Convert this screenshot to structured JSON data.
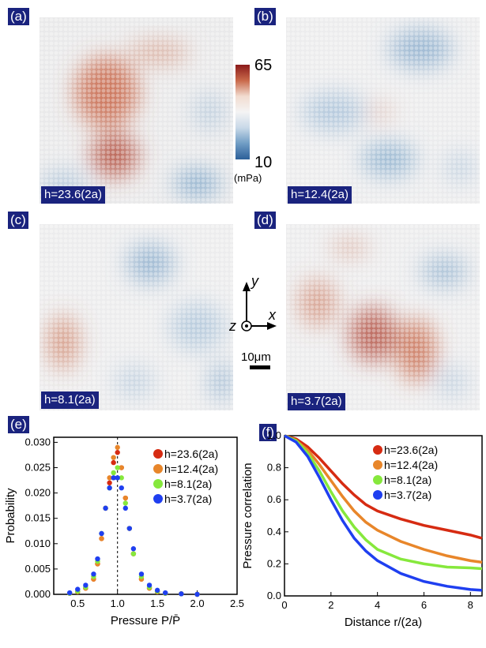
{
  "panels": [
    {
      "label": "(a)",
      "h_label": "h=23.6(2a)"
    },
    {
      "label": "(b)",
      "h_label": "h=12.4(2a)"
    },
    {
      "label": "(c)",
      "h_label": "h=8.1(2a)"
    },
    {
      "label": "(d)",
      "h_label": "h=3.7(2a)"
    }
  ],
  "colorbar": {
    "max": "65",
    "min": "10",
    "unit": "(mPa)",
    "colors": [
      "#8b1a1a",
      "#c9694a",
      "#f2dcd0",
      "#f4f4f4",
      "#c8d8e8",
      "#6f9cc4",
      "#2c5f99"
    ]
  },
  "axes_glyph": {
    "y": "y",
    "x": "x",
    "z": "z"
  },
  "scalebar": {
    "label": "10μm"
  },
  "panel_e": {
    "label": "(e)"
  },
  "panel_f": {
    "label": "(f)"
  },
  "series_colors": [
    "#d62b12",
    "#e8862a",
    "#86e83c",
    "#1f3ff0"
  ],
  "chart_data": [
    {
      "type": "scatter",
      "xlabel": "Pressure P/P̄",
      "ylabel": "Probability",
      "xlim": [
        0.2,
        2.5
      ],
      "ylim": [
        0,
        0.031
      ],
      "xticks": [
        "0.5",
        "1.0",
        "1.5",
        "2.0",
        "2.5"
      ],
      "yticks": [
        "0.000",
        "0.005",
        "0.010",
        "0.015",
        "0.020",
        "0.025",
        "0.030"
      ],
      "vline": 1.0,
      "legend": "top-right",
      "series": [
        {
          "name": "h=23.6(2a)",
          "x": [
            0.4,
            0.5,
            0.6,
            0.7,
            0.75,
            0.8,
            0.85,
            0.9,
            0.95,
            1.0,
            1.05,
            1.1,
            1.15,
            1.2,
            1.3,
            1.4,
            1.5,
            1.6,
            1.8,
            2.0
          ],
          "y": [
            0.0002,
            0.0005,
            0.0012,
            0.003,
            0.006,
            0.011,
            0.017,
            0.022,
            0.026,
            0.028,
            0.025,
            0.019,
            0.013,
            0.008,
            0.003,
            0.0012,
            0.0005,
            0.0002,
            0.0001,
            0.0
          ]
        },
        {
          "name": "h=12.4(2a)",
          "x": [
            0.4,
            0.5,
            0.6,
            0.7,
            0.75,
            0.8,
            0.85,
            0.9,
            0.95,
            1.0,
            1.05,
            1.1,
            1.15,
            1.2,
            1.3,
            1.4,
            1.5,
            1.6,
            1.8,
            2.0
          ],
          "y": [
            0.0002,
            0.0005,
            0.0012,
            0.003,
            0.006,
            0.011,
            0.017,
            0.023,
            0.027,
            0.029,
            0.025,
            0.019,
            0.013,
            0.008,
            0.003,
            0.0012,
            0.0005,
            0.0002,
            0.0001,
            0.0
          ]
        },
        {
          "name": "h=8.1(2a)",
          "x": [
            0.4,
            0.5,
            0.6,
            0.7,
            0.75,
            0.8,
            0.85,
            0.9,
            0.95,
            1.0,
            1.05,
            1.1,
            1.15,
            1.2,
            1.3,
            1.4,
            1.5,
            1.6,
            1.8,
            2.0
          ],
          "y": [
            0.0002,
            0.0006,
            0.0014,
            0.0035,
            0.0065,
            0.012,
            0.017,
            0.021,
            0.024,
            0.025,
            0.023,
            0.018,
            0.013,
            0.008,
            0.0035,
            0.0014,
            0.0006,
            0.0002,
            0.0001,
            0.0
          ]
        },
        {
          "name": "h=3.7(2a)",
          "x": [
            0.4,
            0.5,
            0.6,
            0.7,
            0.75,
            0.8,
            0.85,
            0.9,
            0.95,
            1.0,
            1.05,
            1.1,
            1.15,
            1.2,
            1.3,
            1.4,
            1.5,
            1.6,
            1.8,
            2.0
          ],
          "y": [
            0.0003,
            0.001,
            0.0018,
            0.004,
            0.007,
            0.012,
            0.017,
            0.021,
            0.023,
            0.023,
            0.021,
            0.017,
            0.013,
            0.009,
            0.004,
            0.0018,
            0.0008,
            0.0003,
            0.0001,
            0.0
          ]
        }
      ]
    },
    {
      "type": "line",
      "xlabel": "Distance r/(2a)",
      "ylabel": "Pressure correlation",
      "xlim": [
        0,
        8.5
      ],
      "ylim": [
        0,
        1.0
      ],
      "xticks": [
        "0",
        "2",
        "4",
        "6",
        "8"
      ],
      "yticks": [
        "0.0",
        "0.2",
        "0.4",
        "0.6",
        "0.8",
        "1.0"
      ],
      "legend": "top-right",
      "series": [
        {
          "name": "h=23.6(2a)",
          "x": [
            0,
            0.5,
            1,
            1.5,
            2,
            2.5,
            3,
            3.5,
            4,
            5,
            6,
            7,
            8,
            8.5
          ],
          "y": [
            1.0,
            0.98,
            0.93,
            0.86,
            0.78,
            0.7,
            0.63,
            0.57,
            0.53,
            0.48,
            0.44,
            0.41,
            0.38,
            0.36
          ]
        },
        {
          "name": "h=12.4(2a)",
          "x": [
            0,
            0.5,
            1,
            1.5,
            2,
            2.5,
            3,
            3.5,
            4,
            5,
            6,
            7,
            8,
            8.5
          ],
          "y": [
            1.0,
            0.97,
            0.91,
            0.82,
            0.72,
            0.62,
            0.53,
            0.46,
            0.41,
            0.34,
            0.29,
            0.25,
            0.22,
            0.21
          ]
        },
        {
          "name": "h=8.1(2a)",
          "x": [
            0,
            0.5,
            1,
            1.5,
            2,
            2.5,
            3,
            3.5,
            4,
            5,
            6,
            7,
            8,
            8.5
          ],
          "y": [
            1.0,
            0.97,
            0.89,
            0.78,
            0.65,
            0.53,
            0.43,
            0.35,
            0.29,
            0.23,
            0.2,
            0.18,
            0.175,
            0.17
          ]
        },
        {
          "name": "h=3.7(2a)",
          "x": [
            0,
            0.5,
            1,
            1.5,
            2,
            2.5,
            3,
            3.5,
            4,
            5,
            6,
            7,
            8,
            8.5
          ],
          "y": [
            1.0,
            0.96,
            0.87,
            0.74,
            0.6,
            0.47,
            0.36,
            0.28,
            0.22,
            0.14,
            0.09,
            0.06,
            0.04,
            0.035
          ]
        }
      ]
    }
  ]
}
